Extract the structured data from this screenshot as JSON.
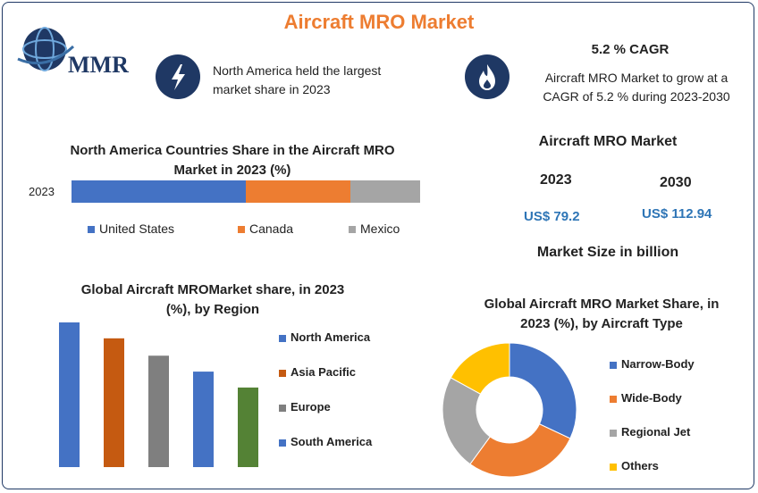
{
  "header": {
    "title": "Aircraft MRO Market",
    "logo_text": "MMR"
  },
  "info_left": {
    "icon": "lightning-icon",
    "text_line1": "North America held the largest",
    "text_line2": "market share in 2023"
  },
  "info_right": {
    "icon": "flame-icon",
    "cagr": "5.2 % CAGR",
    "text_line1": "Aircraft MRO Market to grow at a",
    "text_line2": "CAGR of 5.2 % during 2023-2030"
  },
  "market_size": {
    "title": "Aircraft MRO Market",
    "year1": "2023",
    "year2": "2030",
    "value1": "US$ 79.2",
    "value2": "US$ 112.94",
    "caption": "Market Size in billion"
  },
  "colors": {
    "navy": "#1f3864",
    "blue": "#4472c4",
    "orange": "#ed7d31",
    "gray": "#a5a5a5",
    "darkorange": "#c55a11",
    "darkgray": "#7f7f7f",
    "green": "#548235",
    "gold": "#ffc000"
  },
  "chart_data": [
    {
      "type": "bar",
      "orientation": "horizontal-stacked",
      "title_line1": "North America Countries Share in the  Aircraft MRO",
      "title_line2": "Market  in 2023 (%)",
      "categories": [
        "2023"
      ],
      "series": [
        {
          "name": "United States",
          "values": [
            50
          ],
          "color": "#4472c4"
        },
        {
          "name": "Canada",
          "values": [
            30
          ],
          "color": "#ed7d31"
        },
        {
          "name": "Mexico",
          "values": [
            20
          ],
          "color": "#a5a5a5"
        }
      ],
      "legend": "bottom"
    },
    {
      "type": "bar",
      "title_line1": "Global Aircraft MROMarket share, in 2023",
      "title_line2": "(%), by Region",
      "ylim": [
        0,
        100
      ],
      "bars": [
        {
          "name": "North America",
          "value": 100,
          "color": "#4472c4"
        },
        {
          "name": "Asia Pacific",
          "value": 89,
          "color": "#c55a11"
        },
        {
          "name": "Europe",
          "value": 77,
          "color": "#7f7f7f"
        },
        {
          "name": "South America",
          "value": 66,
          "color": "#4472c4"
        },
        {
          "name": "",
          "value": 55,
          "color": "#548235"
        }
      ],
      "legend": [
        "North America",
        "Asia Pacific",
        "Europe",
        "South America"
      ],
      "legend_placement": "right"
    },
    {
      "type": "pie",
      "style": "donut",
      "title_line1": "Global Aircraft MRO Market Share, in",
      "title_line2": "2023 (%), by Aircraft Type",
      "slices": [
        {
          "name": "Narrow-Body",
          "value": 32,
          "color": "#4472c4"
        },
        {
          "name": "Wide-Body",
          "value": 28,
          "color": "#ed7d31"
        },
        {
          "name": "Regional Jet",
          "value": 23,
          "color": "#a5a5a5"
        },
        {
          "name": "Others",
          "value": 17,
          "color": "#ffc000"
        }
      ],
      "legend_placement": "right"
    }
  ]
}
